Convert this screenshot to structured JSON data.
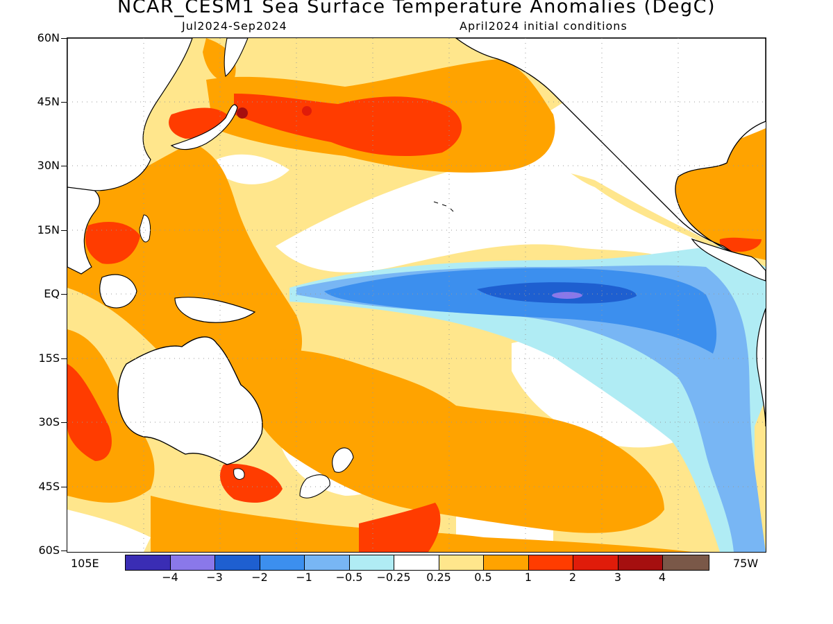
{
  "header": {
    "title": "NCAR_CESM1 Sea Surface Temperature Anomalies (DegC)",
    "subtitle_left": "Jul2024-Sep2024",
    "subtitle_right": "April2024 initial conditions"
  },
  "axes": {
    "lat_labels": [
      "60N",
      "45N",
      "30N",
      "15N",
      "EQ",
      "15S",
      "30S",
      "45S",
      "60S"
    ],
    "lon_left": "105E",
    "lon_right": "75W"
  },
  "colorbar": {
    "colors": [
      "#3a2db4",
      "#8a78ea",
      "#1e5fd0",
      "#3c8fee",
      "#78b6f4",
      "#b0ecf4",
      "#ffffff",
      "#ffe68c",
      "#ffa300",
      "#ff3c00",
      "#e01c0a",
      "#a50f0f",
      "#7a5848"
    ],
    "labels": [
      "-4",
      "-3",
      "-2",
      "-1",
      "-0.5",
      "-0.25",
      "0.25",
      "0.5",
      "1",
      "2",
      "3",
      "4"
    ]
  },
  "colors": {
    "land_outline": "#000000",
    "grid": "#999999"
  }
}
